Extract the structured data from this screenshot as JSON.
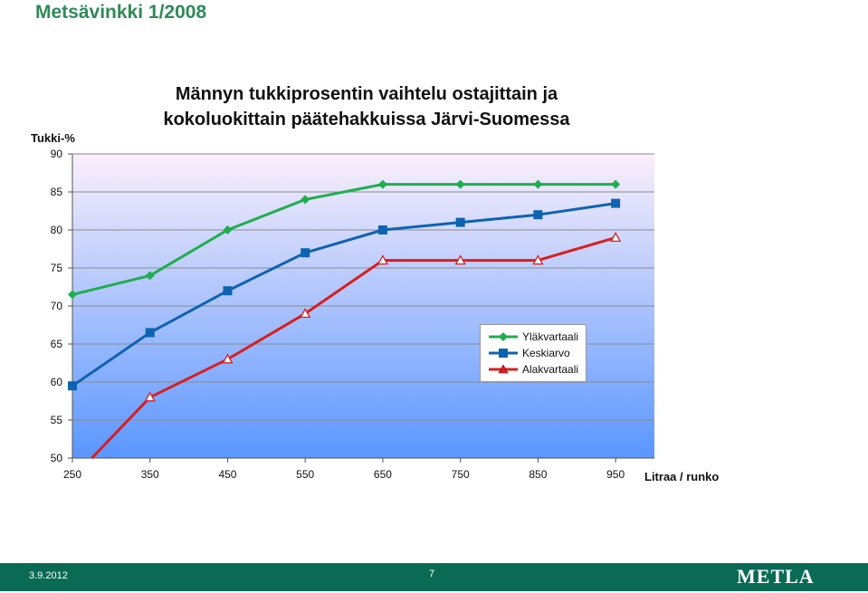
{
  "header": {
    "title": "Metsävinkki 1/2008"
  },
  "colors": {
    "header_green": "#2e8b57",
    "footer_green": "#0a6b55",
    "series_upper": "#1fae4f",
    "series_mean": "#0d63b0",
    "series_lower": "#d71f1f",
    "plot_gradient_top": "#fbeffb",
    "plot_gradient_bottom": "#5a96ff"
  },
  "footer": {
    "date": "3.9.2012",
    "page": "7",
    "logo": "METLA"
  },
  "chart_data": {
    "type": "line",
    "title": "Männyn tukkiprosentin vaihtelu ostajittain ja kokoluokittain päätehakkuissa Järvi-Suomessa",
    "title_lines": [
      "Männyn tukkiprosentin vaihtelu ostajittain ja",
      "kokoluokittain päätehakkuissa Järvi-Suomessa"
    ],
    "xlabel": "Litraa / runko",
    "ylabel": "Tukki-%",
    "xlim": [
      250,
      1000
    ],
    "ylim": [
      50,
      90
    ],
    "xticks": [
      250,
      350,
      450,
      550,
      650,
      750,
      850,
      950
    ],
    "yticks": [
      50,
      55,
      60,
      65,
      70,
      75,
      80,
      85,
      90
    ],
    "grid": true,
    "legend_position": "right-middle",
    "series": [
      {
        "name": "Yläkvartaali",
        "marker": "diamond",
        "x": [
          250,
          350,
          450,
          550,
          650,
          750,
          850,
          950
        ],
        "y": [
          71.5,
          74,
          80,
          84,
          86,
          86,
          86,
          86
        ]
      },
      {
        "name": "Keskiarvo",
        "marker": "square",
        "x": [
          250,
          350,
          450,
          550,
          650,
          750,
          850,
          950
        ],
        "y": [
          59.5,
          66.5,
          72,
          77,
          80,
          81,
          82,
          83.5
        ]
      },
      {
        "name": "Alakvartaali",
        "marker": "triangle",
        "x": [
          275,
          350,
          450,
          550,
          650,
          750,
          850,
          950
        ],
        "y": [
          50,
          58,
          63,
          69,
          76,
          76,
          76,
          79
        ]
      }
    ]
  }
}
